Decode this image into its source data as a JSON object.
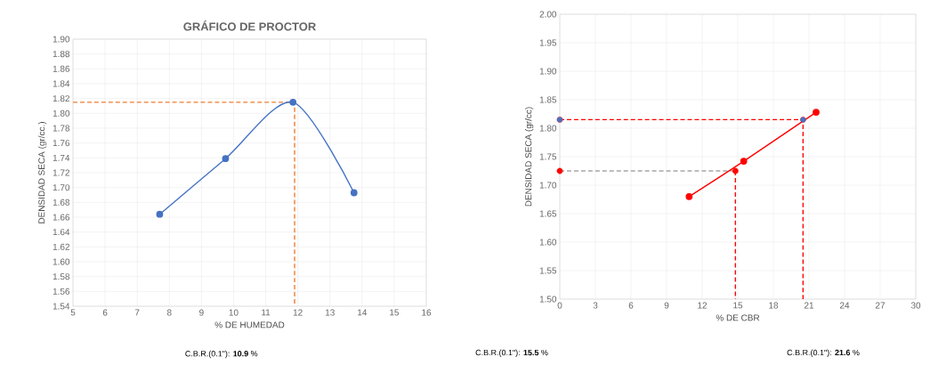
{
  "chart_data": [
    {
      "type": "line",
      "title": "GRÁFICO DE PROCTOR",
      "xlabel": "% DE HUMEDAD",
      "ylabel": "DENSIDAD SECA (gr/cc.)",
      "annotations": [
        "C.B.R.(0.1\"):  **10.9**   %"
      ],
      "xlim": [
        5,
        16
      ],
      "xticks": [
        5,
        6,
        7,
        8,
        9,
        10,
        11,
        12,
        13,
        14,
        15,
        16
      ],
      "ylim": [
        1.54,
        1.9
      ],
      "yticks": [
        1.54,
        1.56,
        1.58,
        {
          "value": 1.6,
          "label": "1.60"
        },
        1.62,
        1.64,
        1.66,
        1.68,
        {
          "value": 1.7,
          "label": "1.70"
        },
        1.72,
        1.74,
        1.76,
        1.78,
        {
          "value": 1.8,
          "label": "1.80"
        },
        1.82,
        1.84,
        1.86,
        1.88,
        {
          "value": 1.9,
          "label": "1.90"
        }
      ],
      "grid": true,
      "series": [
        {
          "color": "#ed7d31",
          "x": [
            5,
            11.9,
            11.9
          ],
          "values": [
            1.815,
            1.815,
            1.54
          ],
          "line_style": "dashed",
          "marker": "none"
        },
        {
          "color": "#4472c4",
          "x": [
            7.7,
            9.75,
            11.85,
            13.75
          ],
          "values": [
            1.664,
            1.739,
            1.815,
            1.693
          ],
          "line_style": "solid",
          "marker": "circle"
        }
      ]
    },
    {
      "type": "line",
      "xlabel": "% DE CBR",
      "ylabel": "DENSIDAD SECA (gr/cc)",
      "annotations": [
        "C.B.R.(0.1\"):   **15.5**   %",
        "C.B.R.(0.1\"):     **21.6** %"
      ],
      "xlim": [
        0,
        30
      ],
      "xticks": [
        0,
        3,
        6,
        9,
        12,
        15,
        18,
        21,
        24,
        27,
        30
      ],
      "ylim": [
        1.5,
        2.0
      ],
      "yticks": [
        {
          "value": 1.5,
          "label": "1.50"
        },
        1.55,
        {
          "value": 1.6,
          "label": "1.60"
        },
        1.65,
        {
          "value": 1.7,
          "label": "1.70"
        },
        1.75,
        {
          "value": 1.8,
          "label": "1.80"
        },
        1.85,
        {
          "value": 1.9,
          "label": "1.90"
        },
        1.95,
        {
          "value": 2.0,
          "label": "2.00"
        }
      ],
      "grid": true,
      "series": [
        {
          "color": "#ff0000",
          "x": [
            0,
            20.5,
            20.5
          ],
          "values": [
            1.815,
            1.815,
            1.5
          ],
          "line_style": "dashed",
          "marker": "none"
        },
        {
          "color": "#a6a6a6",
          "x": [
            0,
            14.8
          ],
          "values": [
            1.725,
            1.725
          ],
          "line_style": "dashed",
          "marker": "none"
        },
        {
          "color": "#ff0000",
          "x": [
            14.8,
            14.8
          ],
          "values": [
            1.725,
            1.5
          ],
          "line_style": "dashed",
          "marker": "none"
        },
        {
          "color": "#ff0000",
          "x": [
            10.9,
            15.5,
            21.6
          ],
          "values": [
            1.68,
            1.742,
            1.828
          ],
          "line_style": "solid",
          "marker": "circle"
        },
        {
          "type": "scatter",
          "x": [
            0,
            20.5,
            0,
            14.8
          ],
          "values": [
            1.815,
            1.815,
            1.725,
            1.725
          ],
          "colors": [
            "#4472c4",
            "#4472c4",
            "#ff0000",
            "#ff0000"
          ],
          "marker": "circle"
        }
      ]
    }
  ]
}
